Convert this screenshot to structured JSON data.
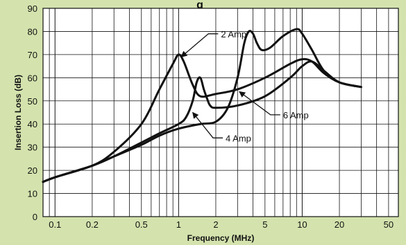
{
  "chart_data": {
    "type": "line",
    "title": "g",
    "xlabel": "Frequency (MHz)",
    "ylabel": "Insertion Loss (dB)",
    "x_scale": "log",
    "xlim": [
      0.08,
      60
    ],
    "ylim": [
      0,
      90
    ],
    "x_ticks": [
      0.1,
      0.2,
      0.5,
      1,
      2,
      5,
      10,
      20,
      50
    ],
    "x_tick_labels": [
      "0.1",
      "0.2",
      "0.5",
      "1",
      "2",
      "5",
      "10",
      "20",
      "50"
    ],
    "y_ticks": [
      0,
      10,
      20,
      30,
      40,
      50,
      60,
      70,
      80,
      90
    ],
    "y_tick_labels": [
      "0",
      "10",
      "20",
      "30",
      "40",
      "50",
      "60",
      "70",
      "80",
      "90"
    ],
    "grid": true,
    "legend": "none",
    "series": [
      {
        "name": "2 Amp",
        "x": [
          0.08,
          0.1,
          0.2,
          0.3,
          0.5,
          0.7,
          0.9,
          1.0,
          1.1,
          1.3,
          1.5,
          2.0,
          3.0,
          5.0,
          8.0,
          10.0,
          12.0,
          15.0,
          20.0,
          30.0
        ],
        "y": [
          15,
          17,
          22,
          28,
          40,
          55,
          66,
          70,
          67,
          57,
          52,
          53,
          55,
          60,
          66,
          68,
          67,
          62,
          58,
          56
        ]
      },
      {
        "name": "4 Amp",
        "x": [
          0.08,
          0.1,
          0.2,
          0.3,
          0.5,
          0.7,
          1.0,
          1.15,
          1.3,
          1.4,
          1.5,
          1.6,
          1.7,
          1.8,
          2.0,
          3.0,
          5.0,
          8.0,
          10.0,
          12.0,
          15.0,
          20.0,
          30.0
        ],
        "y": [
          15,
          17,
          22,
          26,
          32,
          36,
          40,
          43,
          50,
          58,
          60,
          55,
          51,
          48,
          47,
          48,
          52,
          60,
          65,
          67,
          63,
          58,
          56
        ]
      },
      {
        "name": "6 Amp",
        "x": [
          0.08,
          0.1,
          0.2,
          0.3,
          0.5,
          0.7,
          1.0,
          1.5,
          2.0,
          2.5,
          3.0,
          3.4,
          3.7,
          4.0,
          4.3,
          4.7,
          5.5,
          7.0,
          9.0,
          10.0,
          12.0,
          15.0,
          20.0,
          30.0
        ],
        "y": [
          15,
          17,
          22,
          26,
          31,
          35,
          38,
          40,
          41,
          47,
          60,
          75,
          80,
          79,
          75,
          72,
          73,
          78,
          81,
          79,
          72,
          63,
          58,
          56
        ]
      }
    ],
    "annotations": [
      {
        "text": "2 Amp",
        "series": "2 Amp",
        "x": 1.05,
        "y": 69,
        "label_x": 2.2,
        "label_y": 79
      },
      {
        "text": "4 Amp",
        "series": "4 Amp",
        "x": 1.3,
        "y": 45,
        "label_x": 2.4,
        "label_y": 34
      },
      {
        "text": "6 Amp",
        "series": "6 Amp",
        "x": 3.1,
        "y": 54,
        "label_x": 7.0,
        "label_y": 44
      }
    ]
  }
}
